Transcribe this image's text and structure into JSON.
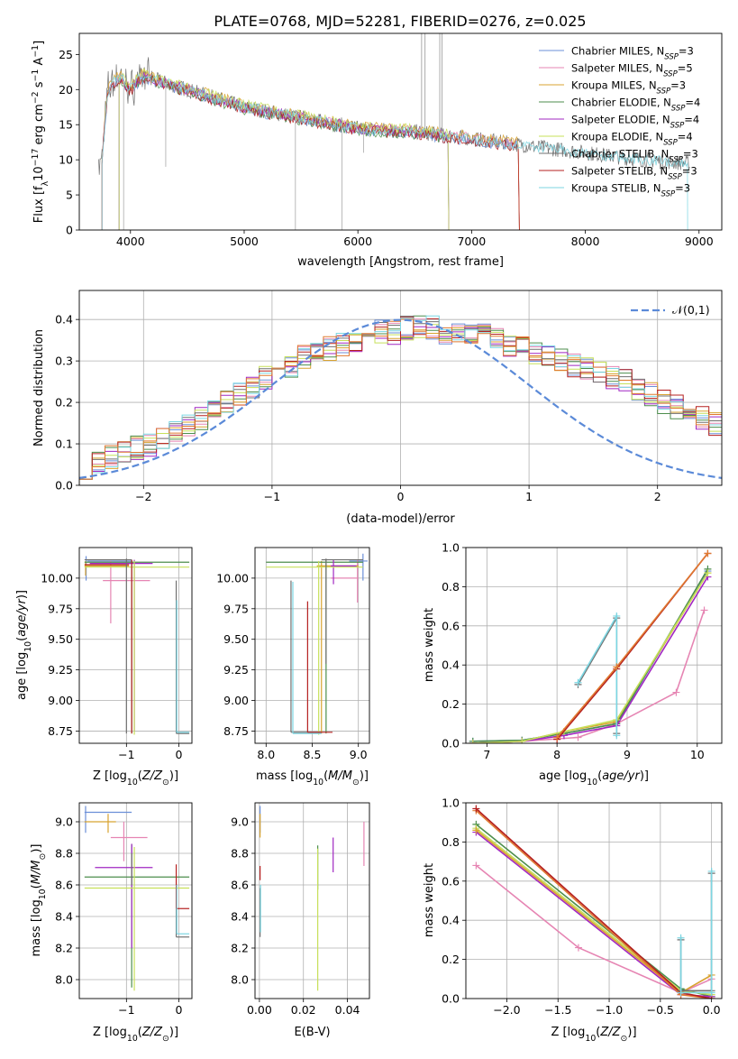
{
  "figure": {
    "title": "PLATE=0768, MJD=52281, FIBERID=0276, z=0.025"
  },
  "colors": {
    "Chabrier MILES": "#6b8fd8",
    "Salpeter MILES": "#e685b3",
    "Kroupa MILES": "#d8a330",
    "Chabrier ELODIE": "#4d8e4d",
    "Salpeter ELODIE": "#a127c2",
    "Kroupa ELODIE": "#c7e05a",
    "Chabrier STELIB": "#707070",
    "Salpeter STELIB": "#b52020",
    "Kroupa STELIB": "#7cd6e2",
    "orange": "#e07a30",
    "gauss": "#5b8ad8"
  },
  "chart_data": [
    {
      "id": "spectrum",
      "type": "line",
      "xlabel": "wavelength [Angstrom, rest frame]",
      "ylabel": "Flux [f_λ 10^-17 erg cm^-2 s^-1 A^-1]",
      "xlim": [
        3550,
        9200
      ],
      "ylim": [
        0,
        28
      ],
      "xticks": [
        4000,
        5000,
        6000,
        7000,
        8000,
        9000
      ],
      "yticks": [
        0,
        5,
        10,
        15,
        20,
        25
      ],
      "grid": false,
      "legend_position": "top-right",
      "legend": [
        {
          "name": "Chabrier MILES",
          "nssp": "3"
        },
        {
          "name": "Salpeter MILES",
          "nssp": "5"
        },
        {
          "name": "Kroupa MILES",
          "nssp": "3"
        },
        {
          "name": "Chabrier ELODIE",
          "nssp": "4"
        },
        {
          "name": "Salpeter ELODIE",
          "nssp": "4"
        },
        {
          "name": "Kroupa ELODIE",
          "nssp": "4"
        },
        {
          "name": "Chabrier STELIB",
          "nssp": "3"
        },
        {
          "name": "Salpeter STELIB",
          "nssp": "3"
        },
        {
          "name": "Kroupa STELIB",
          "nssp": "3"
        }
      ],
      "continuum": [
        [
          3750,
          10.5
        ],
        [
          3800,
          20
        ],
        [
          3900,
          22
        ],
        [
          4000,
          20
        ],
        [
          4100,
          22
        ],
        [
          4300,
          21
        ],
        [
          4500,
          20
        ],
        [
          5000,
          17.5
        ],
        [
          5500,
          16
        ],
        [
          6000,
          14.5
        ],
        [
          6500,
          14
        ],
        [
          7000,
          13
        ],
        [
          7500,
          12
        ],
        [
          8000,
          11
        ],
        [
          8500,
          10
        ],
        [
          8900,
          9.5
        ]
      ]
    },
    {
      "id": "residuals",
      "type": "line",
      "xlabel": "(data-model)/error",
      "ylabel": "Normed distribution",
      "xlim": [
        -2.5,
        2.5
      ],
      "ylim": [
        0,
        0.47
      ],
      "xticks": [
        -2,
        -1,
        0,
        1,
        2
      ],
      "yticks": [
        0.0,
        0.1,
        0.2,
        0.3,
        0.4
      ],
      "grid": true,
      "legend_position": "top-right",
      "gauss_label": "𝒩(0,1)",
      "bin_width": 0.1,
      "hist_base": [
        0.045,
        0.05,
        0.07,
        0.08,
        0.09,
        0.1,
        0.11,
        0.13,
        0.14,
        0.16,
        0.18,
        0.2,
        0.22,
        0.24,
        0.26,
        0.28,
        0.29,
        0.31,
        0.32,
        0.33,
        0.34,
        0.35,
        0.36,
        0.37,
        0.37,
        0.38,
        0.38,
        0.38,
        0.37,
        0.37,
        0.36,
        0.36,
        0.35,
        0.34,
        0.33,
        0.32,
        0.31,
        0.3,
        0.29,
        0.28,
        0.27,
        0.26,
        0.25,
        0.23,
        0.22,
        0.2,
        0.19,
        0.17,
        0.16,
        0.15
      ]
    },
    {
      "id": "age-vs-Z",
      "type": "scatter",
      "xlabel": "Z [log10(Z/Z⊙)]",
      "ylabel": "age  [log10(age/yr)]",
      "xlim": [
        -1.9,
        0.25
      ],
      "ylim": [
        8.65,
        10.25
      ],
      "xticks": [
        -1,
        0
      ],
      "yticks": [
        8.75,
        9.0,
        9.25,
        9.5,
        9.75,
        10.0
      ],
      "grid": true
    },
    {
      "id": "age-vs-mass",
      "type": "scatter",
      "xlabel": "mass [log10(M/M⊙)]",
      "xlim": [
        7.88,
        9.12
      ],
      "ylim": [
        8.65,
        10.25
      ],
      "xticks": [
        8.0,
        8.5,
        9.0
      ],
      "yticks": [
        8.75,
        9.0,
        9.25,
        9.5,
        9.75,
        10.0
      ],
      "grid": true
    },
    {
      "id": "weight-vs-age",
      "type": "line",
      "xlabel": "age  [log10(age/yr)]",
      "ylabel": "mass weight",
      "xlim": [
        6.7,
        10.35
      ],
      "ylim": [
        0,
        1.0
      ],
      "xticks": [
        7,
        8,
        9,
        10
      ],
      "yticks": [
        0.0,
        0.2,
        0.4,
        0.6,
        0.8,
        1.0
      ],
      "grid": true,
      "series": [
        {
          "model": "Chabrier MILES",
          "x": [
            6.8,
            7.5,
            8.1,
            8.85,
            10.15
          ],
          "y": [
            0.01,
            0.015,
            0.05,
            0.1,
            0.88
          ]
        },
        {
          "model": "Salpeter MILES",
          "x": [
            6.8,
            7.5,
            8.3,
            8.85,
            9.7,
            10.1
          ],
          "y": [
            0.0,
            0.01,
            0.03,
            0.1,
            0.26,
            0.68
          ]
        },
        {
          "model": "Kroupa MILES",
          "x": [
            6.8,
            7.5,
            8.1,
            8.85,
            10.15
          ],
          "y": [
            0.0,
            0.01,
            0.06,
            0.11,
            0.87
          ]
        },
        {
          "model": "Chabrier ELODIE",
          "x": [
            6.8,
            7.5,
            8.1,
            8.85,
            10.15
          ],
          "y": [
            0.01,
            0.015,
            0.05,
            0.1,
            0.89
          ]
        },
        {
          "model": "Salpeter ELODIE",
          "x": [
            6.8,
            7.5,
            8.1,
            8.85,
            10.15
          ],
          "y": [
            0.0,
            0.01,
            0.04,
            0.09,
            0.85
          ]
        },
        {
          "model": "Kroupa ELODIE",
          "x": [
            6.8,
            7.5,
            8.1,
            8.85,
            10.15
          ],
          "y": [
            0.0,
            0.01,
            0.06,
            0.12,
            0.87
          ]
        },
        {
          "model": "Chabrier STELIB",
          "x": [
            8.3,
            8.85,
            8.85
          ],
          "y": [
            0.3,
            0.64,
            0.05
          ]
        },
        {
          "model": "Salpeter STELIB",
          "x": [
            8.0,
            8.85,
            10.15
          ],
          "y": [
            0.02,
            0.38,
            0.97
          ]
        },
        {
          "model": "Kroupa STELIB",
          "x": [
            8.3,
            8.85,
            8.85
          ],
          "y": [
            0.31,
            0.65,
            0.04
          ]
        },
        {
          "model": "orange",
          "x": [
            8.0,
            8.85,
            10.15
          ],
          "y": [
            0.03,
            0.39,
            0.97
          ]
        }
      ]
    },
    {
      "id": "mass-vs-Z",
      "type": "scatter",
      "xlabel": "Z [log10(Z/Z⊙)]",
      "ylabel": "mass [log10(M/M⊙)]",
      "xlim": [
        -1.9,
        0.25
      ],
      "ylim": [
        7.88,
        9.12
      ],
      "xticks": [
        -1,
        0
      ],
      "yticks": [
        8.0,
        8.2,
        8.4,
        8.6,
        8.8,
        9.0
      ],
      "grid": true
    },
    {
      "id": "mass-vs-ebv",
      "type": "scatter",
      "xlabel": "E(B-V)",
      "xlim": [
        -0.002,
        0.05
      ],
      "ylim": [
        7.88,
        9.12
      ],
      "xticks": [
        0.0,
        0.02,
        0.04
      ],
      "yticks": [
        8.0,
        8.2,
        8.4,
        8.6,
        8.8,
        9.0
      ],
      "grid": true
    },
    {
      "id": "weight-vs-Z",
      "type": "line",
      "xlabel": "Z [log10(Z/Z⊙)]",
      "ylabel": "mass weight",
      "xlim": [
        -2.4,
        0.1
      ],
      "ylim": [
        0,
        1.0
      ],
      "xticks": [
        -2.0,
        -1.5,
        -1.0,
        -0.5,
        0.0
      ],
      "yticks": [
        0.0,
        0.2,
        0.4,
        0.6,
        0.8,
        1.0
      ],
      "grid": true,
      "series": [
        {
          "model": "Salpeter MILES",
          "x": [
            -2.3,
            -1.3,
            -0.3,
            0.0
          ],
          "y": [
            0.68,
            0.26,
            0.03,
            0.1
          ]
        },
        {
          "model": "Chabrier ELODIE",
          "x": [
            -2.3,
            -0.3,
            0.0
          ],
          "y": [
            0.89,
            0.05,
            0.01
          ]
        },
        {
          "model": "Kroupa ELODIE",
          "x": [
            -2.3,
            -0.3,
            0.0
          ],
          "y": [
            0.87,
            0.04,
            0.02
          ]
        },
        {
          "model": "Salpeter ELODIE",
          "x": [
            -2.3,
            -0.3,
            0.0
          ],
          "y": [
            0.85,
            0.02,
            0.01
          ]
        },
        {
          "model": "Kroupa MILES",
          "x": [
            -2.3,
            -0.3,
            0.0
          ],
          "y": [
            0.86,
            0.03,
            0.12
          ]
        },
        {
          "model": "orange",
          "x": [
            -2.3,
            -0.3,
            0.0
          ],
          "y": [
            0.96,
            0.02,
            0.0
          ]
        },
        {
          "model": "Salpeter STELIB",
          "x": [
            -2.3,
            -0.3,
            0.0
          ],
          "y": [
            0.97,
            0.03,
            0.0
          ]
        },
        {
          "model": "Chabrier STELIB",
          "x": [
            -0.3,
            -0.3,
            0.0,
            0.0
          ],
          "y": [
            0.3,
            0.04,
            0.04,
            0.64
          ]
        },
        {
          "model": "Kroupa STELIB",
          "x": [
            -0.3,
            -0.3,
            0.0,
            0.0
          ],
          "y": [
            0.31,
            0.03,
            0.03,
            0.65
          ]
        }
      ]
    }
  ]
}
